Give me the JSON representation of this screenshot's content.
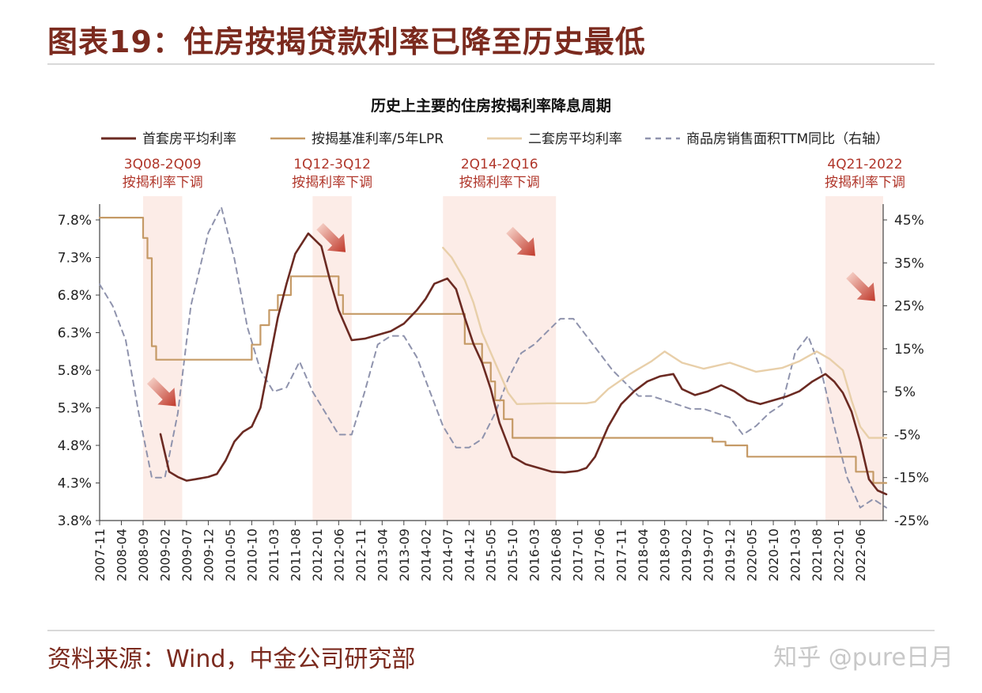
{
  "figure": {
    "title": "图表19：住房按揭贷款利率已降至历史最低",
    "source": "资料来源：Wind，中金公司研究部",
    "watermark": "知乎 @pure日月"
  },
  "chart_data": {
    "type": "line",
    "title": "历史上主要的住房按揭利率降息周期",
    "legend_position": "top",
    "x_ticks": [
      "2007-11",
      "2008-04",
      "2008-09",
      "2009-02",
      "2009-07",
      "2009-12",
      "2010-05",
      "2010-10",
      "2011-03",
      "2011-08",
      "2012-01",
      "2012-06",
      "2012-11",
      "2013-04",
      "2013-09",
      "2014-02",
      "2014-07",
      "2014-12",
      "2015-05",
      "2015-10",
      "2016-03",
      "2016-08",
      "2017-01",
      "2017-06",
      "2017-11",
      "2018-04",
      "2018-09",
      "2019-02",
      "2019-07",
      "2019-12",
      "2020-05",
      "2020-10",
      "2021-03",
      "2021-08",
      "2022-01",
      "2022-06"
    ],
    "left_axis": {
      "ticks": [
        "7.8%",
        "7.3%",
        "6.8%",
        "6.3%",
        "5.8%",
        "5.3%",
        "4.8%",
        "4.3%",
        "3.8%"
      ],
      "range": [
        3.8,
        7.8
      ],
      "unit": "%"
    },
    "right_axis": {
      "ticks": [
        "45%",
        "35%",
        "25%",
        "15%",
        "5%",
        "-5%",
        "-15%",
        "-25%"
      ],
      "range": [
        -25,
        45
      ],
      "unit": "%"
    },
    "cut_periods": [
      {
        "label_top": "3Q08-2Q09",
        "label_bottom": "按揭利率下调",
        "start": "2008-09",
        "end": "2009-06",
        "arrow_y": 5.5
      },
      {
        "label_top": "1Q12-3Q12",
        "label_bottom": "按揭利率下调",
        "start": "2011-12",
        "end": "2012-09",
        "arrow_y": 7.55
      },
      {
        "label_top": "2Q14-2Q16",
        "label_bottom": "按揭利率下调",
        "start": "2014-06",
        "end": "2016-08",
        "arrow_y": 7.5
      },
      {
        "label_top": "4Q21-2022",
        "label_bottom": "按揭利率下调",
        "start": "2021-10",
        "end": "2022-12",
        "arrow_y": 6.9
      }
    ],
    "series": [
      {
        "name": "首套房平均利率",
        "axis": "left",
        "color": "#6b2a22",
        "dash": "none",
        "width": 2.6,
        "points": [
          [
            "2009-01",
            4.95
          ],
          [
            "2009-03",
            4.45
          ],
          [
            "2009-05",
            4.38
          ],
          [
            "2009-07",
            4.33
          ],
          [
            "2009-09",
            4.35
          ],
          [
            "2009-12",
            4.38
          ],
          [
            "2010-02",
            4.42
          ],
          [
            "2010-04",
            4.6
          ],
          [
            "2010-06",
            4.85
          ],
          [
            "2010-08",
            4.98
          ],
          [
            "2010-10",
            5.05
          ],
          [
            "2010-12",
            5.3
          ],
          [
            "2011-02",
            5.9
          ],
          [
            "2011-04",
            6.5
          ],
          [
            "2011-06",
            6.95
          ],
          [
            "2011-08",
            7.35
          ],
          [
            "2011-11",
            7.62
          ],
          [
            "2012-02",
            7.45
          ],
          [
            "2012-04",
            7.0
          ],
          [
            "2012-06",
            6.6
          ],
          [
            "2012-09",
            6.2
          ],
          [
            "2012-12",
            6.22
          ],
          [
            "2013-03",
            6.27
          ],
          [
            "2013-06",
            6.32
          ],
          [
            "2013-09",
            6.42
          ],
          [
            "2013-12",
            6.6
          ],
          [
            "2014-02",
            6.75
          ],
          [
            "2014-04",
            6.95
          ],
          [
            "2014-07",
            7.02
          ],
          [
            "2014-09",
            6.88
          ],
          [
            "2014-11",
            6.5
          ],
          [
            "2015-01",
            6.15
          ],
          [
            "2015-03",
            5.9
          ],
          [
            "2015-05",
            5.55
          ],
          [
            "2015-07",
            5.1
          ],
          [
            "2015-10",
            4.65
          ],
          [
            "2016-01",
            4.55
          ],
          [
            "2016-04",
            4.5
          ],
          [
            "2016-07",
            4.45
          ],
          [
            "2016-10",
            4.44
          ],
          [
            "2017-01",
            4.46
          ],
          [
            "2017-03",
            4.5
          ],
          [
            "2017-05",
            4.65
          ],
          [
            "2017-08",
            5.05
          ],
          [
            "2017-11",
            5.35
          ],
          [
            "2018-02",
            5.52
          ],
          [
            "2018-05",
            5.65
          ],
          [
            "2018-08",
            5.72
          ],
          [
            "2018-11",
            5.75
          ],
          [
            "2019-01",
            5.55
          ],
          [
            "2019-04",
            5.47
          ],
          [
            "2019-07",
            5.52
          ],
          [
            "2019-10",
            5.6
          ],
          [
            "2020-01",
            5.52
          ],
          [
            "2020-04",
            5.4
          ],
          [
            "2020-07",
            5.35
          ],
          [
            "2020-10",
            5.4
          ],
          [
            "2021-01",
            5.45
          ],
          [
            "2021-04",
            5.52
          ],
          [
            "2021-07",
            5.65
          ],
          [
            "2021-10",
            5.75
          ],
          [
            "2021-12",
            5.65
          ],
          [
            "2022-02",
            5.5
          ],
          [
            "2022-04",
            5.25
          ],
          [
            "2022-06",
            4.85
          ],
          [
            "2022-08",
            4.35
          ],
          [
            "2022-10",
            4.2
          ],
          [
            "2022-12",
            4.15
          ]
        ]
      },
      {
        "name": "按揭基准利率/5年LPR",
        "axis": "left",
        "color": "#c59a66",
        "dash": "none",
        "width": 2.2,
        "step": true,
        "points": [
          [
            "2007-11",
            7.83
          ],
          [
            "2008-09",
            7.56
          ],
          [
            "2008-10",
            7.29
          ],
          [
            "2008-11",
            6.12
          ],
          [
            "2008-12",
            5.94
          ],
          [
            "2010-10",
            6.14
          ],
          [
            "2010-12",
            6.4
          ],
          [
            "2011-02",
            6.6
          ],
          [
            "2011-04",
            6.8
          ],
          [
            "2011-07",
            7.05
          ],
          [
            "2012-06",
            6.8
          ],
          [
            "2012-07",
            6.55
          ],
          [
            "2014-11",
            6.15
          ],
          [
            "2015-03",
            5.9
          ],
          [
            "2015-05",
            5.65
          ],
          [
            "2015-06",
            5.4
          ],
          [
            "2015-08",
            5.15
          ],
          [
            "2015-10",
            4.9
          ],
          [
            "2019-08",
            4.85
          ],
          [
            "2019-11",
            4.8
          ],
          [
            "2020-04",
            4.65
          ],
          [
            "2021-12",
            4.65
          ],
          [
            "2022-05",
            4.45
          ],
          [
            "2022-09",
            4.3
          ],
          [
            "2022-12",
            4.3
          ]
        ]
      },
      {
        "name": "二套房平均利率",
        "axis": "left",
        "color": "#e8cfa9",
        "dash": "none",
        "width": 2.4,
        "points": [
          [
            "2014-06",
            7.43
          ],
          [
            "2014-08",
            7.3
          ],
          [
            "2014-11",
            7.0
          ],
          [
            "2015-01",
            6.7
          ],
          [
            "2015-03",
            6.3
          ],
          [
            "2015-06",
            5.9
          ],
          [
            "2015-09",
            5.5
          ],
          [
            "2015-11",
            5.35
          ],
          [
            "2016-06",
            5.36
          ],
          [
            "2017-03",
            5.36
          ],
          [
            "2017-05",
            5.38
          ],
          [
            "2017-08",
            5.55
          ],
          [
            "2018-01",
            5.75
          ],
          [
            "2018-06",
            5.92
          ],
          [
            "2018-09",
            6.05
          ],
          [
            "2019-01",
            5.9
          ],
          [
            "2019-06",
            5.82
          ],
          [
            "2019-12",
            5.9
          ],
          [
            "2020-06",
            5.78
          ],
          [
            "2020-12",
            5.83
          ],
          [
            "2021-04",
            5.92
          ],
          [
            "2021-08",
            6.05
          ],
          [
            "2021-11",
            5.95
          ],
          [
            "2022-02",
            5.8
          ],
          [
            "2022-04",
            5.4
          ],
          [
            "2022-06",
            5.05
          ],
          [
            "2022-08",
            4.9
          ],
          [
            "2022-12",
            4.9
          ]
        ]
      },
      {
        "name": "商品房销售面积TTM同比（右轴）",
        "axis": "right",
        "color": "#8f93ad",
        "dash": "7,6",
        "width": 2.0,
        "points": [
          [
            "2007-11",
            30
          ],
          [
            "2008-02",
            25
          ],
          [
            "2008-05",
            17
          ],
          [
            "2008-08",
            0
          ],
          [
            "2008-11",
            -15
          ],
          [
            "2009-02",
            -15
          ],
          [
            "2009-05",
            0
          ],
          [
            "2009-08",
            25
          ],
          [
            "2009-12",
            42
          ],
          [
            "2010-03",
            48
          ],
          [
            "2010-06",
            36
          ],
          [
            "2010-09",
            20
          ],
          [
            "2010-12",
            10
          ],
          [
            "2011-03",
            5
          ],
          [
            "2011-06",
            6
          ],
          [
            "2011-09",
            12
          ],
          [
            "2011-12",
            5
          ],
          [
            "2012-03",
            0
          ],
          [
            "2012-06",
            -5
          ],
          [
            "2012-09",
            -5
          ],
          [
            "2012-12",
            5
          ],
          [
            "2013-03",
            16
          ],
          [
            "2013-06",
            18
          ],
          [
            "2013-09",
            18
          ],
          [
            "2013-12",
            13
          ],
          [
            "2014-03",
            5
          ],
          [
            "2014-06",
            -3
          ],
          [
            "2014-09",
            -8
          ],
          [
            "2014-12",
            -8
          ],
          [
            "2015-03",
            -6
          ],
          [
            "2015-06",
            0
          ],
          [
            "2015-09",
            8
          ],
          [
            "2015-12",
            14
          ],
          [
            "2016-03",
            16
          ],
          [
            "2016-06",
            19
          ],
          [
            "2016-09",
            22
          ],
          [
            "2016-12",
            22
          ],
          [
            "2017-03",
            18
          ],
          [
            "2017-06",
            14
          ],
          [
            "2017-09",
            10
          ],
          [
            "2017-12",
            7
          ],
          [
            "2018-03",
            4
          ],
          [
            "2018-06",
            4
          ],
          [
            "2018-09",
            3
          ],
          [
            "2018-12",
            2
          ],
          [
            "2019-03",
            1
          ],
          [
            "2019-06",
            1
          ],
          [
            "2019-09",
            0
          ],
          [
            "2019-12",
            -1
          ],
          [
            "2020-03",
            -5
          ],
          [
            "2020-06",
            -3
          ],
          [
            "2020-09",
            0
          ],
          [
            "2020-12",
            2
          ],
          [
            "2021-03",
            14
          ],
          [
            "2021-06",
            18
          ],
          [
            "2021-09",
            10
          ],
          [
            "2021-12",
            -3
          ],
          [
            "2022-03",
            -15
          ],
          [
            "2022-06",
            -22
          ],
          [
            "2022-09",
            -20
          ],
          [
            "2022-12",
            -22
          ]
        ]
      }
    ]
  }
}
